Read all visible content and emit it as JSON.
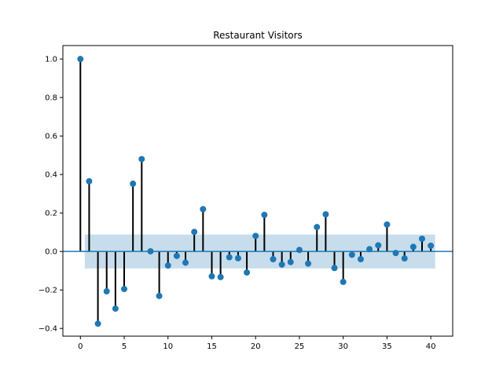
{
  "chart_data": {
    "type": "stem",
    "title": "Restaurant Visitors",
    "xlabel": "",
    "ylabel": "",
    "xlim": [
      -2,
      42.5
    ],
    "ylim": [
      -0.44,
      1.07
    ],
    "xticks": [
      0,
      5,
      10,
      15,
      20,
      25,
      30,
      35,
      40
    ],
    "xtick_labels": [
      "0",
      "5",
      "10",
      "15",
      "20",
      "25",
      "30",
      "35",
      "40"
    ],
    "yticks": [
      -0.4,
      -0.2,
      0.0,
      0.2,
      0.4,
      0.6,
      0.8,
      1.0
    ],
    "ytick_labels": [
      "−0.4",
      "−0.2",
      "0.0",
      "0.2",
      "0.4",
      "0.6",
      "0.8",
      "1.0"
    ],
    "lags": [
      0,
      1,
      2,
      3,
      4,
      5,
      6,
      7,
      8,
      9,
      10,
      11,
      12,
      13,
      14,
      15,
      16,
      17,
      18,
      19,
      20,
      21,
      22,
      23,
      24,
      25,
      26,
      27,
      28,
      29,
      30,
      31,
      32,
      33,
      34,
      35,
      36,
      37,
      38,
      39,
      40
    ],
    "values": [
      1.0,
      0.365,
      -0.375,
      -0.207,
      -0.297,
      -0.195,
      0.352,
      0.48,
      0.001,
      -0.231,
      -0.073,
      -0.023,
      -0.058,
      0.102,
      0.22,
      -0.129,
      -0.133,
      -0.03,
      -0.035,
      -0.109,
      0.081,
      0.19,
      -0.04,
      -0.068,
      -0.055,
      0.008,
      -0.063,
      0.127,
      0.193,
      -0.086,
      -0.158,
      -0.017,
      -0.04,
      0.012,
      0.032,
      0.14,
      -0.008,
      -0.036,
      0.024,
      0.066,
      0.03
    ],
    "confidence_band": {
      "lower": -0.088,
      "upper": 0.088,
      "x_start": 0.5,
      "x_end": 40.5
    },
    "grid": false,
    "legend": "none",
    "colors": {
      "marker": "#1f77b4",
      "stem": "#000000",
      "zero_line": "#1f77b4",
      "band": "#1f77b4"
    }
  }
}
